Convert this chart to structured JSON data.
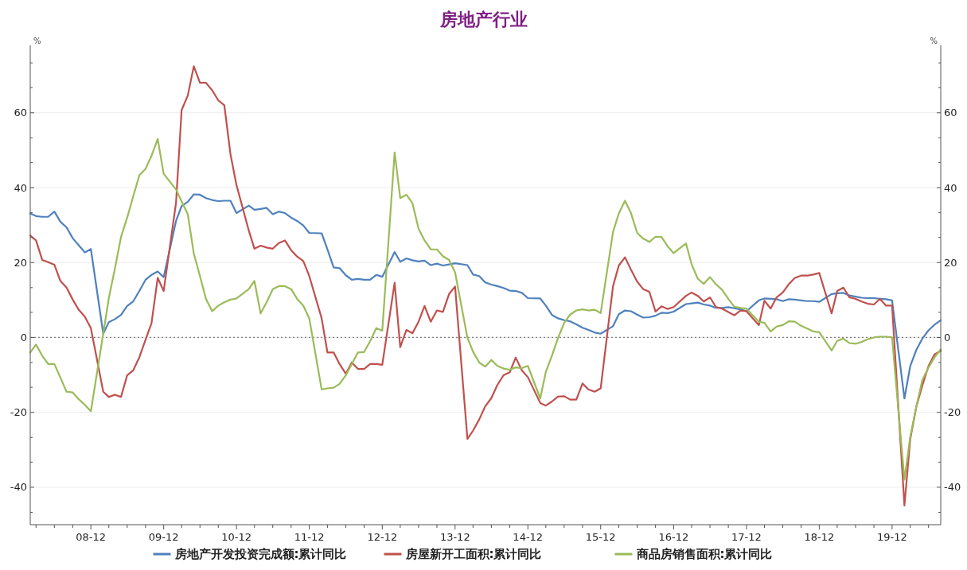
{
  "chart_data": {
    "type": "line",
    "title": "房地产行业",
    "ylabel": "%",
    "y2label": "%",
    "x": [
      "2008-02",
      "2008-03",
      "2008-04",
      "2008-05",
      "2008-06",
      "2008-07",
      "2008-08",
      "2008-09",
      "2008-10",
      "2008-11",
      "2008-12",
      "2009-02",
      "2009-03",
      "2009-04",
      "2009-05",
      "2009-06",
      "2009-07",
      "2009-08",
      "2009-09",
      "2009-10",
      "2009-11",
      "2009-12",
      "2010-02",
      "2010-03",
      "2010-04",
      "2010-05",
      "2010-06",
      "2010-07",
      "2010-08",
      "2010-09",
      "2010-10",
      "2010-11",
      "2010-12",
      "2011-02",
      "2011-03",
      "2011-04",
      "2011-05",
      "2011-06",
      "2011-07",
      "2011-08",
      "2011-09",
      "2011-10",
      "2011-11",
      "2011-12",
      "2012-02",
      "2012-03",
      "2012-04",
      "2012-05",
      "2012-06",
      "2012-07",
      "2012-08",
      "2012-09",
      "2012-10",
      "2012-11",
      "2012-12",
      "2013-02",
      "2013-03",
      "2013-04",
      "2013-05",
      "2013-06",
      "2013-07",
      "2013-08",
      "2013-09",
      "2013-10",
      "2013-11",
      "2013-12",
      "2014-02",
      "2014-03",
      "2014-04",
      "2014-05",
      "2014-06",
      "2014-07",
      "2014-08",
      "2014-09",
      "2014-10",
      "2014-11",
      "2014-12",
      "2015-02",
      "2015-03",
      "2015-04",
      "2015-05",
      "2015-06",
      "2015-07",
      "2015-08",
      "2015-09",
      "2015-10",
      "2015-11",
      "2015-12",
      "2016-02",
      "2016-03",
      "2016-04",
      "2016-05",
      "2016-06",
      "2016-07",
      "2016-08",
      "2016-09",
      "2016-10",
      "2016-11",
      "2016-12",
      "2017-02",
      "2017-03",
      "2017-04",
      "2017-05",
      "2017-06",
      "2017-07",
      "2017-08",
      "2017-09",
      "2017-10",
      "2017-11",
      "2017-12",
      "2018-02",
      "2018-03",
      "2018-04",
      "2018-05",
      "2018-06",
      "2018-07",
      "2018-08",
      "2018-09",
      "2018-10",
      "2018-11",
      "2018-12",
      "2019-02",
      "2019-03",
      "2019-04",
      "2019-05",
      "2019-06",
      "2019-07",
      "2019-08",
      "2019-09",
      "2019-10",
      "2019-11",
      "2019-12",
      "2020-02",
      "2020-03",
      "2020-04",
      "2020-05",
      "2020-06",
      "2020-07",
      "2020-08"
    ],
    "series": [
      {
        "name": "房地产开发投资完成额:累计同比",
        "color": "#4f81bd",
        "values": [
          33.1,
          32.4,
          32.2,
          32.2,
          33.6,
          30.9,
          29.4,
          26.5,
          24.6,
          22.7,
          23.6,
          1.0,
          4.1,
          4.9,
          6.0,
          8.4,
          9.6,
          12.4,
          15.4,
          16.7,
          17.6,
          16.1,
          31.1,
          35.1,
          36.2,
          38.2,
          38.1,
          37.2,
          36.7,
          36.4,
          36.5,
          36.5,
          33.2,
          35.2,
          34.1,
          34.3,
          34.6,
          32.9,
          33.6,
          33.2,
          32.0,
          31.1,
          29.9,
          27.9,
          27.8,
          23.5,
          18.7,
          18.5,
          16.6,
          15.4,
          15.6,
          15.4,
          15.4,
          16.7,
          16.2,
          22.8,
          20.2,
          21.1,
          20.6,
          20.3,
          20.5,
          19.3,
          19.7,
          19.2,
          19.5,
          19.8,
          19.3,
          16.8,
          16.4,
          14.7,
          14.1,
          13.7,
          13.2,
          12.5,
          12.4,
          11.9,
          10.5,
          10.4,
          8.5,
          6.0,
          5.1,
          4.6,
          4.3,
          3.5,
          2.6,
          2.0,
          1.3,
          1.0,
          3.0,
          6.2,
          7.2,
          7.0,
          6.1,
          5.3,
          5.4,
          5.8,
          6.6,
          6.5,
          6.9,
          8.9,
          9.1,
          9.3,
          8.8,
          8.5,
          7.9,
          7.9,
          8.1,
          7.8,
          7.5,
          7.0,
          9.9,
          10.4,
          10.3,
          10.2,
          9.7,
          10.2,
          10.1,
          9.9,
          9.7,
          9.7,
          9.5,
          11.6,
          11.8,
          11.9,
          11.2,
          10.9,
          10.6,
          10.5,
          10.5,
          10.3,
          10.2,
          9.9,
          -16.3,
          -7.7,
          -3.3,
          -0.3,
          1.9,
          3.4,
          4.6
        ]
      },
      {
        "name": "房屋新开工面积:累计同比",
        "color": "#c0504d",
        "values": [
          27.2,
          25.9,
          20.7,
          20.1,
          19.4,
          15.1,
          13.3,
          10.1,
          7.4,
          5.5,
          2.5,
          -14.5,
          -15.9,
          -15.3,
          -15.9,
          -10.1,
          -8.8,
          -5.3,
          -0.6,
          3.8,
          15.9,
          12.4,
          36.0,
          60.7,
          64.6,
          72.4,
          68.0,
          68.0,
          66.0,
          63.3,
          62.0,
          48.9,
          40.7,
          28.5,
          23.7,
          24.5,
          24.0,
          23.7,
          25.2,
          25.9,
          23.3,
          21.6,
          20.4,
          16.4,
          5.1,
          -4.0,
          -4.0,
          -7.1,
          -9.7,
          -6.7,
          -8.4,
          -8.4,
          -7.1,
          -7.1,
          -7.3,
          14.6,
          -2.6,
          2.0,
          1.1,
          4.2,
          8.4,
          4.2,
          7.2,
          6.8,
          11.6,
          13.6,
          -27.1,
          -24.9,
          -21.9,
          -18.4,
          -16.2,
          -12.7,
          -10.1,
          -9.3,
          -5.4,
          -8.8,
          -10.6,
          -17.5,
          -18.2,
          -17.1,
          -15.8,
          -15.7,
          -16.6,
          -16.6,
          -12.3,
          -13.9,
          -14.5,
          -13.6,
          13.7,
          19.2,
          21.4,
          18.1,
          14.9,
          12.9,
          12.2,
          6.9,
          8.3,
          7.6,
          8.1,
          11.1,
          12.0,
          11.1,
          9.6,
          10.7,
          8.1,
          7.7,
          6.8,
          5.9,
          7.2,
          7.0,
          3.3,
          9.8,
          7.7,
          10.7,
          12.0,
          14.2,
          15.9,
          16.5,
          16.5,
          16.8,
          17.2,
          6.4,
          12.4,
          13.3,
          10.7,
          10.3,
          9.6,
          9.0,
          8.8,
          10.3,
          8.5,
          8.5,
          -44.9,
          -27.2,
          -18.4,
          -12.8,
          -7.6,
          -4.5,
          -3.6
        ]
      },
      {
        "name": "商品房销售面积:累计同比",
        "color": "#9bbb59",
        "values": [
          -4.0,
          -1.9,
          -4.9,
          -7.1,
          -7.1,
          -10.7,
          -14.5,
          -14.7,
          -16.5,
          -18.0,
          -19.7,
          1.0,
          10.5,
          18.5,
          26.8,
          32.0,
          37.6,
          43.3,
          45.0,
          48.5,
          53.0,
          43.7,
          39.5,
          36.3,
          32.9,
          22.4,
          16.4,
          10.3,
          7.0,
          8.5,
          9.4,
          10.1,
          10.4,
          12.9,
          15.1,
          6.4,
          9.4,
          12.9,
          13.7,
          13.7,
          12.9,
          10.3,
          8.5,
          5.1,
          -13.9,
          -13.6,
          -13.4,
          -12.4,
          -10.1,
          -7.1,
          -4.0,
          -3.9,
          -1.0,
          2.5,
          1.8,
          49.4,
          37.2,
          38.1,
          35.9,
          29.0,
          25.9,
          23.5,
          23.5,
          21.7,
          20.7,
          17.4,
          -0.1,
          -3.8,
          -6.7,
          -7.8,
          -6.0,
          -7.6,
          -8.3,
          -8.6,
          -8.0,
          -8.2,
          -7.6,
          -16.3,
          -9.2,
          -4.8,
          -0.2,
          3.9,
          6.1,
          7.2,
          7.5,
          7.2,
          7.4,
          6.5,
          28.2,
          33.1,
          36.5,
          33.2,
          27.9,
          26.4,
          25.5,
          26.9,
          26.8,
          24.3,
          22.5,
          25.1,
          19.5,
          15.7,
          14.3,
          16.1,
          14.2,
          12.7,
          10.3,
          8.2,
          7.9,
          7.7,
          4.2,
          3.9,
          1.6,
          2.9,
          3.3,
          4.3,
          4.2,
          3.1,
          2.4,
          1.6,
          1.4,
          -3.5,
          -0.9,
          -0.3,
          -1.5,
          -1.7,
          -1.2,
          -0.5,
          0.0,
          0.2,
          0.2,
          0.0,
          -38.0,
          -26.6,
          -18.4,
          -11.3,
          -8.0,
          -5.3,
          -3.2
        ]
      }
    ],
    "xlim": [
      "2008-02",
      "2020-08"
    ],
    "xticks": [
      {
        "value": "2008-03",
        "label": null
      },
      {
        "value": "2008-06",
        "label": null
      },
      {
        "value": "2008-09",
        "label": null
      },
      {
        "value": "2008-12",
        "label": "08-12"
      },
      {
        "value": "2009-03",
        "label": null
      },
      {
        "value": "2009-06",
        "label": null
      },
      {
        "value": "2009-09",
        "label": null
      },
      {
        "value": "2009-12",
        "label": "09-12"
      },
      {
        "value": "2010-03",
        "label": null
      },
      {
        "value": "2010-06",
        "label": null
      },
      {
        "value": "2010-09",
        "label": null
      },
      {
        "value": "2010-12",
        "label": "10-12"
      },
      {
        "value": "2011-03",
        "label": null
      },
      {
        "value": "2011-06",
        "label": null
      },
      {
        "value": "2011-09",
        "label": null
      },
      {
        "value": "2011-12",
        "label": "11-12"
      },
      {
        "value": "2012-03",
        "label": null
      },
      {
        "value": "2012-06",
        "label": null
      },
      {
        "value": "2012-09",
        "label": null
      },
      {
        "value": "2012-12",
        "label": "12-12"
      },
      {
        "value": "2013-03",
        "label": null
      },
      {
        "value": "2013-06",
        "label": null
      },
      {
        "value": "2013-09",
        "label": null
      },
      {
        "value": "2013-12",
        "label": "13-12"
      },
      {
        "value": "2014-03",
        "label": null
      },
      {
        "value": "2014-06",
        "label": null
      },
      {
        "value": "2014-09",
        "label": null
      },
      {
        "value": "2014-12",
        "label": "14-12"
      },
      {
        "value": "2015-03",
        "label": null
      },
      {
        "value": "2015-06",
        "label": null
      },
      {
        "value": "2015-09",
        "label": null
      },
      {
        "value": "2015-12",
        "label": "15-12"
      },
      {
        "value": "2016-03",
        "label": null
      },
      {
        "value": "2016-06",
        "label": null
      },
      {
        "value": "2016-09",
        "label": null
      },
      {
        "value": "2016-12",
        "label": "16-12"
      },
      {
        "value": "2017-03",
        "label": null
      },
      {
        "value": "2017-06",
        "label": null
      },
      {
        "value": "2017-09",
        "label": null
      },
      {
        "value": "2017-12",
        "label": "17-12"
      },
      {
        "value": "2018-03",
        "label": null
      },
      {
        "value": "2018-06",
        "label": null
      },
      {
        "value": "2018-09",
        "label": null
      },
      {
        "value": "2018-12",
        "label": "18-12"
      },
      {
        "value": "2019-03",
        "label": null
      },
      {
        "value": "2019-06",
        "label": null
      },
      {
        "value": "2019-09",
        "label": null
      },
      {
        "value": "2019-12",
        "label": "19-12"
      },
      {
        "value": "2020-03",
        "label": null
      },
      {
        "value": "2020-06",
        "label": null
      }
    ],
    "ylim": [
      -50,
      78
    ],
    "yticks": [
      {
        "value": -46.7,
        "label": null
      },
      -40,
      {
        "value": -33.3,
        "label": null
      },
      {
        "value": -26.7,
        "label": null
      },
      -20,
      {
        "value": -13.3,
        "label": null
      },
      {
        "value": -6.7,
        "label": null
      },
      0,
      {
        "value": 6.7,
        "label": null
      },
      {
        "value": 13.3,
        "label": null
      },
      20,
      {
        "value": 26.7,
        "label": null
      },
      {
        "value": 33.3,
        "label": null
      },
      40,
      {
        "value": 46.7,
        "label": null
      },
      {
        "value": 53.3,
        "label": null
      },
      60,
      {
        "value": 66.7,
        "label": null
      },
      {
        "value": 73.3,
        "label": null
      }
    ],
    "y2lim": [
      -50,
      78
    ],
    "y2ticks": [
      {
        "value": -46.7,
        "label": null
      },
      -40,
      {
        "value": -33.3,
        "label": null
      },
      {
        "value": -26.7,
        "label": null
      },
      -20,
      {
        "value": -13.3,
        "label": null
      },
      {
        "value": -6.7,
        "label": null
      },
      0,
      {
        "value": 6.7,
        "label": null
      },
      {
        "value": 13.3,
        "label": null
      },
      20,
      {
        "value": 26.7,
        "label": null
      },
      {
        "value": 33.3,
        "label": null
      },
      40,
      {
        "value": 46.7,
        "label": null
      },
      {
        "value": 53.3,
        "label": null
      },
      60,
      {
        "value": 66.7,
        "label": null
      },
      {
        "value": 73.3,
        "label": null
      }
    ],
    "ref_lines": [
      {
        "axis": "y",
        "value": 0,
        "color": "#808080",
        "line_style": "dotted"
      }
    ],
    "grid": "y",
    "legend": "bottom",
    "marker": "none",
    "line_style": "solid"
  }
}
